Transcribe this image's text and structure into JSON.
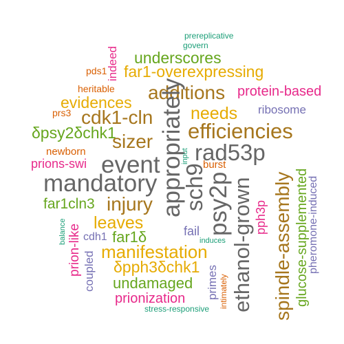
{
  "colors": {
    "green": "#1b9e77",
    "orange": "#d95f02",
    "purple": "#7570b3",
    "magenta": "#e7298a",
    "lime": "#66a61e",
    "gold": "#e6ab02",
    "brown": "#a6761d",
    "gray": "#666666"
  },
  "words": [
    {
      "text": "prereplicative",
      "color": "green"
    },
    {
      "text": "govern",
      "color": "green"
    },
    {
      "text": "indeed",
      "color": "magenta"
    },
    {
      "text": "underscores",
      "color": "lime"
    },
    {
      "text": "pds1",
      "color": "orange"
    },
    {
      "text": "far1-overexpressing",
      "color": "gold"
    },
    {
      "text": "heritable",
      "color": "orange"
    },
    {
      "text": "additions",
      "color": "brown"
    },
    {
      "text": "protein-based",
      "color": "magenta"
    },
    {
      "text": "evidences",
      "color": "gold"
    },
    {
      "text": "prs3",
      "color": "orange"
    },
    {
      "text": "cdk1-cln",
      "color": "brown"
    },
    {
      "text": "needs",
      "color": "gold"
    },
    {
      "text": "ribosome",
      "color": "purple"
    },
    {
      "text": "δpsy2δchk1",
      "color": "lime"
    },
    {
      "text": "efficiencies",
      "color": "brown"
    },
    {
      "text": "sizer",
      "color": "brown"
    },
    {
      "text": "appropriately",
      "color": "gray"
    },
    {
      "text": "rad53p",
      "color": "gray"
    },
    {
      "text": "newborn",
      "color": "orange"
    },
    {
      "text": "input",
      "color": "green"
    },
    {
      "text": "prions-swi",
      "color": "magenta"
    },
    {
      "text": "event",
      "color": "gray"
    },
    {
      "text": "burst",
      "color": "orange"
    },
    {
      "text": "mandatory",
      "color": "gray"
    },
    {
      "text": "sch9",
      "color": "gray"
    },
    {
      "text": "psy2p",
      "color": "gray"
    },
    {
      "text": "ethanol-grown",
      "color": "gray"
    },
    {
      "text": "spindle-assembly",
      "color": "brown"
    },
    {
      "text": "glucose-supplemented",
      "color": "lime"
    },
    {
      "text": "pheromone-induced",
      "color": "purple"
    },
    {
      "text": "pph3p",
      "color": "magenta"
    },
    {
      "text": "far1cln3",
      "color": "lime"
    },
    {
      "text": "injury",
      "color": "brown"
    },
    {
      "text": "prion-like",
      "color": "magenta"
    },
    {
      "text": "leaves",
      "color": "gold"
    },
    {
      "text": "balance",
      "color": "green"
    },
    {
      "text": "cdh1",
      "color": "purple"
    },
    {
      "text": "far1δ",
      "color": "lime"
    },
    {
      "text": "fail",
      "color": "purple"
    },
    {
      "text": "induces",
      "color": "green"
    },
    {
      "text": "manifestation",
      "color": "gold"
    },
    {
      "text": "coupled",
      "color": "purple"
    },
    {
      "text": "δpph3δchk1",
      "color": "gold"
    },
    {
      "text": "primes",
      "color": "purple"
    },
    {
      "text": "intimately",
      "color": "orange"
    },
    {
      "text": "undamaged",
      "color": "lime"
    },
    {
      "text": "prionization",
      "color": "magenta"
    },
    {
      "text": "stress-responsive",
      "color": "green"
    }
  ]
}
